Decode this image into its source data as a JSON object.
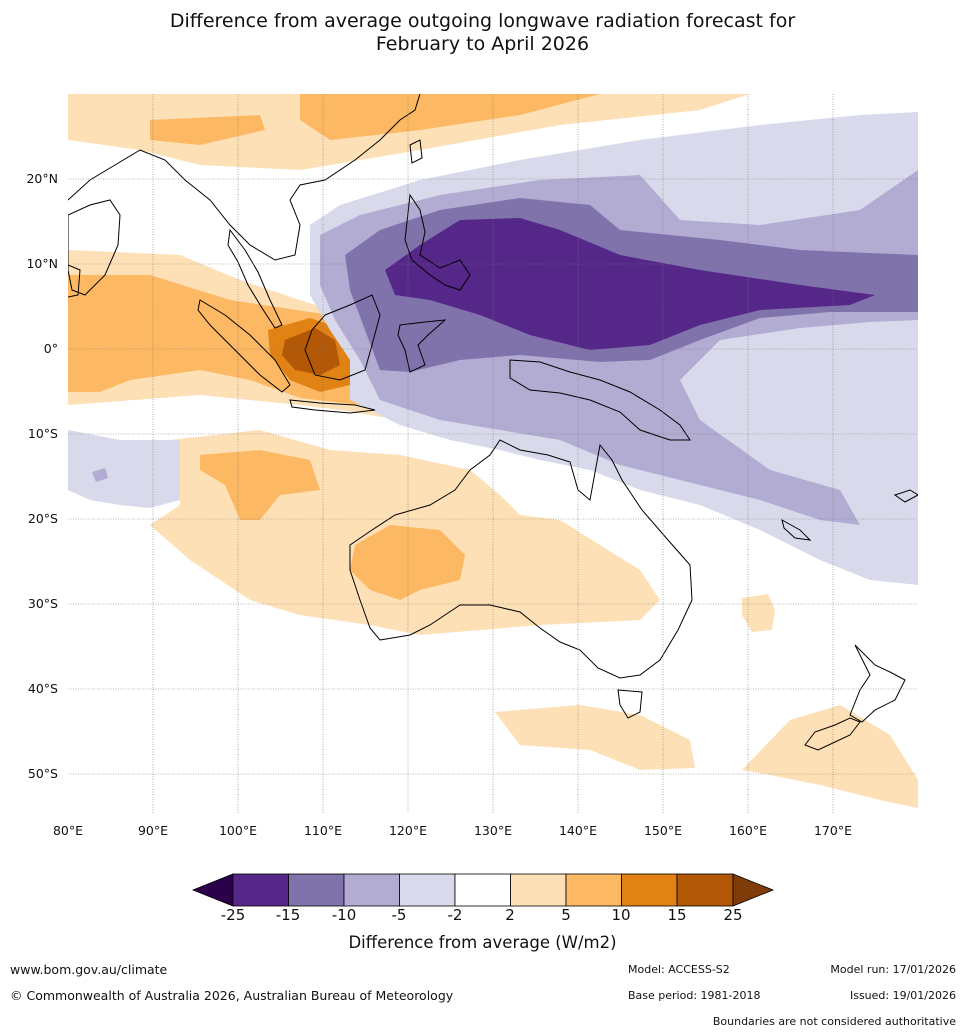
{
  "title": {
    "line1": "Difference from average outgoing longwave radiation forecast for",
    "line2": "February to April 2026"
  },
  "map": {
    "latitude_labels": [
      "20°N",
      "10°N",
      "0°",
      "10°S",
      "20°S",
      "30°S",
      "40°S",
      "50°S"
    ],
    "longitude_labels": [
      "80°E",
      "90°E",
      "100°E",
      "110°E",
      "120°E",
      "130°E",
      "140°E",
      "150°E",
      "160°E",
      "170°E"
    ]
  },
  "colorbar": {
    "title": "Difference from average (W/m2)",
    "ticks": [
      "-25",
      "-15",
      "-10",
      "-5",
      "-2",
      "2",
      "5",
      "10",
      "15",
      "25"
    ],
    "colors": {
      "below_min": "#2d004b",
      "neg25_neg15": "#542788",
      "neg15_neg10": "#8073ac",
      "neg10_neg5": "#b2abd2",
      "neg5_neg2": "#d8daeb",
      "neg2_pos2": "#ffffff",
      "pos2_pos5": "#fee0b6",
      "pos5_pos10": "#fdb863",
      "pos10_pos15": "#e08214",
      "pos15_pos25": "#b35806",
      "above_max": "#7f3b08"
    }
  },
  "footer": {
    "website": "www.bom.gov.au/climate",
    "copyright": "© Commonwealth of Australia 2026, Australian Bureau of Meteorology",
    "model": "Model: ACCESS-S2",
    "model_run": "Model run: 17/01/2026",
    "base_period": "Base period: 1981-2018",
    "issued": "Issued: 19/01/2026",
    "disclaimer": "Boundaries are not considered authoritative"
  }
}
